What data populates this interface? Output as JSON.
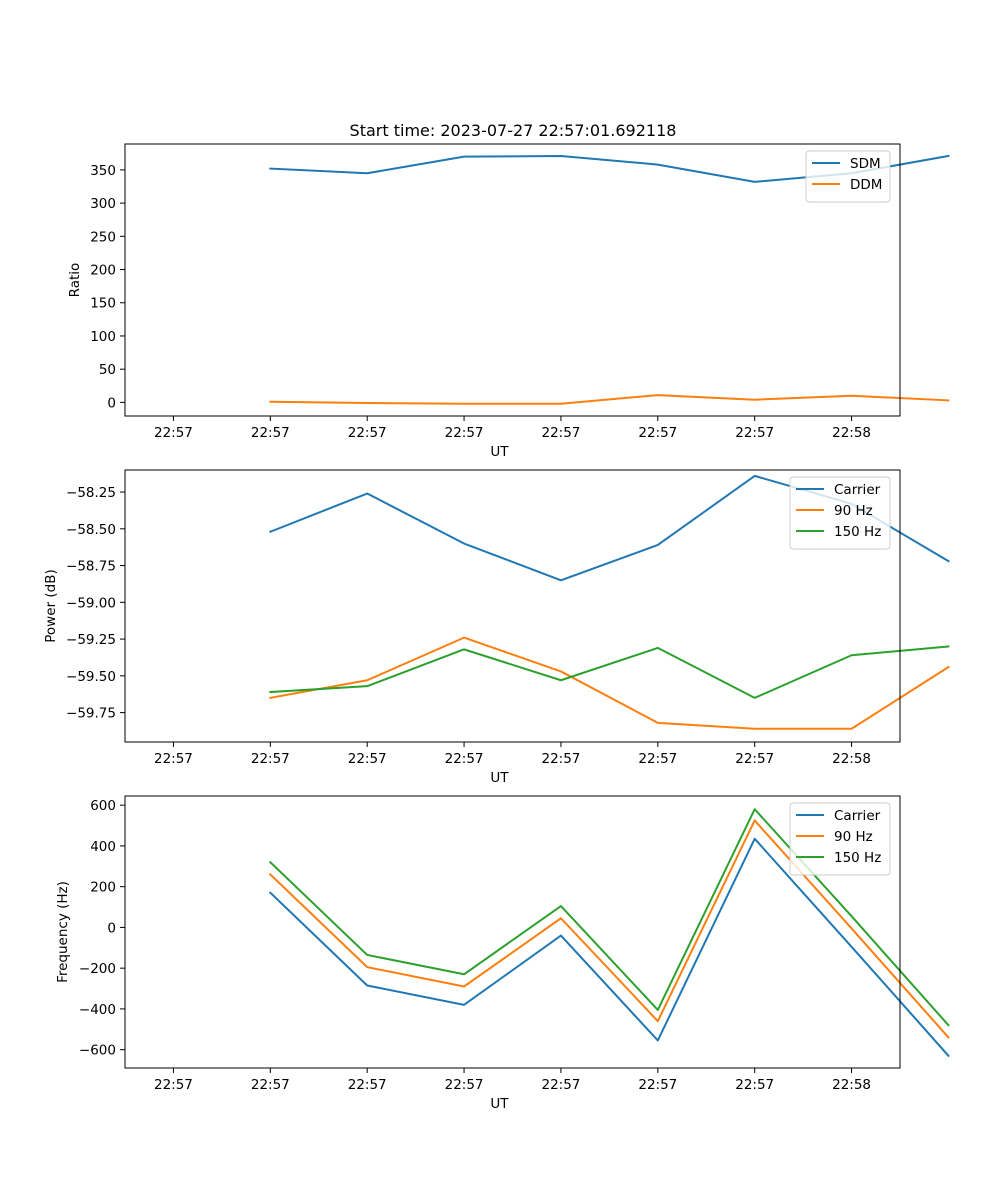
{
  "figure_title": "Start time: 2023-07-27 22:57:01.692118",
  "colors": {
    "blue": "#1f77b4",
    "orange": "#ff7f0e",
    "green": "#2ca02c"
  },
  "chart_data": [
    {
      "type": "line",
      "title": "Start time: 2023-07-27 22:57:01.692118",
      "xlabel": "UT",
      "ylabel": "Ratio",
      "x_tick_labels": [
        "22:57",
        "22:57",
        "22:57",
        "22:57",
        "22:57",
        "22:57",
        "22:57"
      ],
      "x_last_tick_label": "22:58",
      "xlim": [
        -0.5,
        7.5
      ],
      "x": [
        1,
        2,
        3,
        4,
        5,
        6,
        7,
        8
      ],
      "ylim": [
        -20.5,
        389
      ],
      "yticks": [
        0,
        50,
        100,
        150,
        200,
        250,
        300,
        350
      ],
      "legend": "top-right",
      "series": [
        {
          "name": "SDM",
          "color": "#1f77b4",
          "values": [
            352,
            345,
            370,
            371,
            358,
            332,
            345,
            371
          ]
        },
        {
          "name": "DDM",
          "color": "#ff7f0e",
          "values": [
            1,
            -1,
            -2,
            -2,
            11,
            4,
            10,
            3
          ]
        }
      ]
    },
    {
      "type": "line",
      "xlabel": "UT",
      "ylabel": "Power (dB)",
      "x_tick_labels": [
        "22:57",
        "22:57",
        "22:57",
        "22:57",
        "22:57",
        "22:57",
        "22:57"
      ],
      "x_last_tick_label": "22:58",
      "xlim": [
        -0.5,
        7.5
      ],
      "x": [
        1,
        2,
        3,
        4,
        5,
        6,
        7,
        8
      ],
      "ylim": [
        -59.95,
        -58.1
      ],
      "yticks": [
        -59.75,
        -59.5,
        -59.25,
        -59.0,
        -58.75,
        -58.5,
        -58.25
      ],
      "ytick_labels": [
        "−59.75",
        "−59.50",
        "−59.25",
        "−59.00",
        "−58.75",
        "−58.50",
        "−58.25"
      ],
      "legend": "top-right",
      "series": [
        {
          "name": "Carrier",
          "color": "#1f77b4",
          "values": [
            -58.52,
            -58.26,
            -58.6,
            -58.85,
            -58.61,
            -58.14,
            -58.33,
            -58.72
          ]
        },
        {
          "name": "90 Hz",
          "color": "#ff7f0e",
          "values": [
            -59.65,
            -59.53,
            -59.24,
            -59.47,
            -59.82,
            -59.86,
            -59.86,
            -59.44
          ]
        },
        {
          "name": "150 Hz",
          "color": "#2ca02c",
          "values": [
            -59.61,
            -59.57,
            -59.32,
            -59.53,
            -59.31,
            -59.65,
            -59.36,
            -59.3
          ]
        }
      ]
    },
    {
      "type": "line",
      "xlabel": "UT",
      "ylabel": "Frequency (Hz)",
      "x_tick_labels": [
        "22:57",
        "22:57",
        "22:57",
        "22:57",
        "22:57",
        "22:57",
        "22:57"
      ],
      "x_last_tick_label": "22:58",
      "xlim": [
        -0.5,
        7.5
      ],
      "x": [
        1,
        2,
        3,
        4,
        5,
        6,
        7,
        8
      ],
      "ylim": [
        -690,
        645
      ],
      "yticks": [
        -600,
        -400,
        -200,
        0,
        200,
        400,
        600
      ],
      "ytick_labels": [
        "−600",
        "−400",
        "−200",
        "0",
        "200",
        "400",
        "600"
      ],
      "legend": "top-right",
      "series": [
        {
          "name": "Carrier",
          "color": "#1f77b4",
          "values": [
            170,
            -285,
            -380,
            -40,
            -555,
            435,
            -95,
            -630
          ]
        },
        {
          "name": "90 Hz",
          "color": "#ff7f0e",
          "values": [
            260,
            -195,
            -290,
            45,
            -460,
            525,
            -5,
            -540
          ]
        },
        {
          "name": "150 Hz",
          "color": "#2ca02c",
          "values": [
            320,
            -135,
            -230,
            105,
            -405,
            580,
            55,
            -480
          ]
        }
      ]
    }
  ]
}
